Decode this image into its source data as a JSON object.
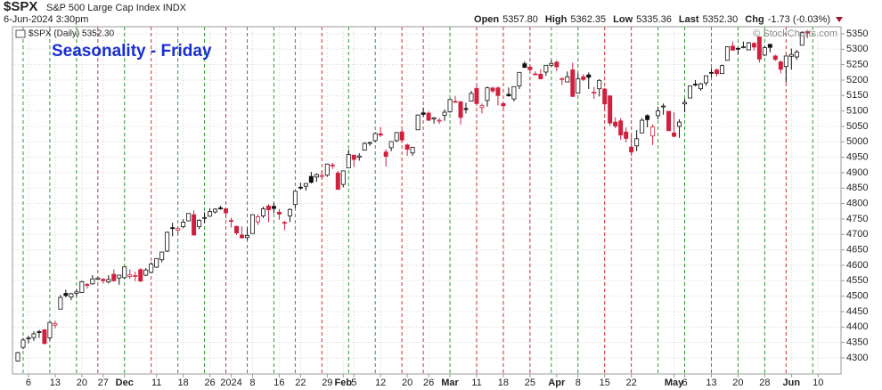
{
  "chart_data": {
    "type": "candlestick",
    "symbol": "$SPX",
    "name": "S&P 500 Large Cap Index",
    "exchange": "INDX",
    "date": "6-Jun-2024 3:30pm",
    "quote": [
      {
        "label": "Open",
        "value": "5357.80"
      },
      {
        "label": "High",
        "value": "5362.35"
      },
      {
        "label": "Low",
        "value": "5335.36"
      },
      {
        "label": "Last",
        "value": "5352.30"
      },
      {
        "label": "Chg",
        "value": "-1.73 (-0.03%)"
      }
    ],
    "legend": "$SPX (Daily) 5352.30",
    "title": "Seasonality - Friday",
    "watermark": "© StockCharts.com",
    "up_color": "#111111",
    "down_color": "#d0203f",
    "grid": true,
    "ylim": [
      4248,
      5373
    ],
    "yticks": [
      4300,
      4350,
      4400,
      4450,
      4500,
      4550,
      4600,
      4650,
      4700,
      4750,
      4800,
      4850,
      4900,
      4950,
      5000,
      5050,
      5100,
      5150,
      5200,
      5250,
      5300,
      5350
    ],
    "xlim": [
      -1,
      154.3
    ],
    "xticks": [
      {
        "value": 2,
        "label": "6"
      },
      {
        "value": 7,
        "label": "13"
      },
      {
        "value": 12,
        "label": "20"
      },
      {
        "value": 16,
        "label": "27"
      },
      {
        "value": 20,
        "label": "Dec"
      },
      {
        "value": 26,
        "label": "11"
      },
      {
        "value": 31,
        "label": "18"
      },
      {
        "value": 36,
        "label": "26"
      },
      {
        "value": 40,
        "label": "2024"
      },
      {
        "value": 44,
        "label": "8"
      },
      {
        "value": 49,
        "label": "16"
      },
      {
        "value": 53,
        "label": "22"
      },
      {
        "value": 58,
        "label": "29"
      },
      {
        "value": 61,
        "label": "Feb"
      },
      {
        "value": 63,
        "label": "5"
      },
      {
        "value": 68,
        "label": "12"
      },
      {
        "value": 73,
        "label": "20"
      },
      {
        "value": 77,
        "label": "26"
      },
      {
        "value": 81,
        "label": "Mar"
      },
      {
        "value": 86,
        "label": "11"
      },
      {
        "value": 91,
        "label": "18"
      },
      {
        "value": 96,
        "label": "25"
      },
      {
        "value": 101,
        "label": "Apr"
      },
      {
        "value": 105,
        "label": "8"
      },
      {
        "value": 110,
        "label": "15"
      },
      {
        "value": 115,
        "label": "22"
      },
      {
        "value": 123,
        "label": "May"
      },
      {
        "value": 125,
        "label": "6"
      },
      {
        "value": 130,
        "label": "13"
      },
      {
        "value": 135,
        "label": "20"
      },
      {
        "value": 140,
        "label": "28"
      },
      {
        "value": 145,
        "label": "Jun"
      },
      {
        "value": 150,
        "label": "10"
      }
    ],
    "fridays": [
      {
        "value": 1,
        "color": "#2e9a2e"
      },
      {
        "value": 6,
        "color": "#2e9a2e"
      },
      {
        "value": 11,
        "color": "#2e9a2e"
      },
      {
        "value": 15,
        "color": "#d03030"
      },
      {
        "value": 20,
        "color": "#2e9a2e"
      },
      {
        "value": 25,
        "color": "#d03030"
      },
      {
        "value": 30,
        "color": "#2e9a2e"
      },
      {
        "value": 35,
        "color": "#2e9a2e"
      },
      {
        "value": 39,
        "color": "#d03030"
      },
      {
        "value": 43,
        "color": "#2e9a2e"
      },
      {
        "value": 48,
        "color": "#2e9a2e"
      },
      {
        "value": 52,
        "color": "#2e9a2e"
      },
      {
        "value": 57,
        "color": "#d03030"
      },
      {
        "value": 62,
        "color": "#2e9a2e"
      },
      {
        "value": 67,
        "color": "#2e9a2e"
      },
      {
        "value": 72,
        "color": "#d03030"
      },
      {
        "value": 76,
        "color": "#d03030"
      },
      {
        "value": 81,
        "color": "#2e9a2e"
      },
      {
        "value": 86,
        "color": "#d03030"
      },
      {
        "value": 91,
        "color": "#d03030"
      },
      {
        "value": 96,
        "color": "#d03030"
      },
      {
        "value": 100,
        "color": "#2e9a2e"
      },
      {
        "value": 105,
        "color": "#2e9a2e"
      },
      {
        "value": 110,
        "color": "#d03030"
      },
      {
        "value": 115,
        "color": "#d03030"
      },
      {
        "value": 120,
        "color": "#2e9a2e"
      },
      {
        "value": 125,
        "color": "#2e9a2e"
      },
      {
        "value": 130,
        "color": "#2e9a2e"
      },
      {
        "value": 135,
        "color": "#2e9a2e"
      },
      {
        "value": 140,
        "color": "#2e9a2e"
      },
      {
        "value": 144,
        "color": "#d03030"
      },
      {
        "value": 149,
        "color": "#2e9a2e"
      }
    ],
    "candles": [
      [
        4290,
        4320,
        4288,
        4317
      ],
      [
        4334,
        4365,
        4328,
        4358
      ],
      [
        4364,
        4372,
        4347,
        4365
      ],
      [
        4366,
        4386,
        4355,
        4378
      ],
      [
        4385,
        4391,
        4365,
        4383
      ],
      [
        4391,
        4393,
        4343,
        4347
      ],
      [
        4365,
        4418,
        4357,
        4415
      ],
      [
        4406,
        4421,
        4396,
        4411
      ],
      [
        4458,
        4504,
        4458,
        4496
      ],
      [
        4509,
        4521,
        4496,
        4502
      ],
      [
        4497,
        4511,
        4487,
        4508
      ],
      [
        4509,
        4521,
        4500,
        4514
      ],
      [
        4512,
        4550,
        4511,
        4547
      ],
      [
        4538,
        4543,
        4525,
        4538
      ],
      [
        4540,
        4568,
        4537,
        4556
      ],
      [
        4555,
        4560,
        4552,
        4559
      ],
      [
        4555,
        4558,
        4541,
        4550
      ],
      [
        4546,
        4568,
        4541,
        4554
      ],
      [
        4571,
        4587,
        4547,
        4550
      ],
      [
        4559,
        4569,
        4537,
        4568
      ],
      [
        4560,
        4595,
        4557,
        4595
      ],
      [
        4564,
        4587,
        4556,
        4569
      ],
      [
        4566,
        4580,
        4549,
        4567
      ],
      [
        4586,
        4591,
        4546,
        4549
      ],
      [
        4568,
        4591,
        4565,
        4585
      ],
      [
        4577,
        4610,
        4574,
        4604
      ],
      [
        4594,
        4623,
        4592,
        4622
      ],
      [
        4618,
        4644,
        4610,
        4643
      ],
      [
        4646,
        4709,
        4643,
        4707
      ],
      [
        4722,
        4738,
        4694,
        4720
      ],
      [
        4714,
        4726,
        4702,
        4719
      ],
      [
        4725,
        4749,
        4720,
        4740
      ],
      [
        4744,
        4768,
        4743,
        4768
      ],
      [
        4764,
        4778,
        4697,
        4698
      ],
      [
        4725,
        4749,
        4717,
        4746
      ],
      [
        4753,
        4772,
        4737,
        4755
      ],
      [
        4759,
        4785,
        4758,
        4774
      ],
      [
        4773,
        4785,
        4768,
        4782
      ],
      [
        4786,
        4793,
        4780,
        4783
      ],
      [
        4783,
        4788,
        4752,
        4770
      ],
      [
        4745,
        4754,
        4723,
        4743
      ],
      [
        4726,
        4729,
        4699,
        4705
      ],
      [
        4698,
        4726,
        4687,
        4689
      ],
      [
        4690,
        4722,
        4682,
        4697
      ],
      [
        4703,
        4765,
        4703,
        4764
      ],
      [
        4741,
        4765,
        4731,
        4757
      ],
      [
        4760,
        4790,
        4753,
        4783
      ],
      [
        4792,
        4798,
        4740,
        4780
      ],
      [
        4791,
        4802,
        4769,
        4784
      ],
      [
        4772,
        4782,
        4748,
        4766
      ],
      [
        4739,
        4744,
        4714,
        4739
      ],
      [
        4760,
        4785,
        4740,
        4781
      ],
      [
        4797,
        4842,
        4785,
        4840
      ],
      [
        4853,
        4868,
        4845,
        4851
      ],
      [
        4856,
        4866,
        4842,
        4865
      ],
      [
        4888,
        4903,
        4865,
        4869
      ],
      [
        4886,
        4898,
        4870,
        4894
      ],
      [
        4888,
        4907,
        4881,
        4891
      ],
      [
        4892,
        4929,
        4887,
        4928
      ],
      [
        4925,
        4932,
        4912,
        4925
      ],
      [
        4899,
        4906,
        4845,
        4846
      ],
      [
        4862,
        4907,
        4853,
        4906
      ],
      [
        4916,
        4975,
        4916,
        4959
      ],
      [
        4957,
        4957,
        4918,
        4943
      ],
      [
        4950,
        4963,
        4939,
        4954
      ],
      [
        4973,
        4999,
        4973,
        4995
      ],
      [
        4995,
        5000,
        4987,
        4998
      ],
      [
        5004,
        5031,
        4999,
        5027
      ],
      [
        5026,
        5048,
        5016,
        5022
      ],
      [
        4967,
        4976,
        4920,
        4953
      ],
      [
        4981,
        5002,
        4970,
        5001
      ],
      [
        5004,
        5032,
        4999,
        5030
      ],
      [
        5032,
        5039,
        4996,
        5006
      ],
      [
        4990,
        4994,
        4955,
        4976
      ],
      [
        4964,
        4984,
        4955,
        4982
      ],
      [
        5039,
        5089,
        5039,
        5087
      ],
      [
        5094,
        5111,
        5081,
        5089
      ],
      [
        5093,
        5098,
        5068,
        5070
      ],
      [
        5074,
        5080,
        5059,
        5078
      ],
      [
        5068,
        5077,
        5058,
        5070
      ],
      [
        5086,
        5105,
        5068,
        5096
      ],
      [
        5098,
        5140,
        5094,
        5137
      ],
      [
        5131,
        5149,
        5127,
        5131
      ],
      [
        5130,
        5130,
        5056,
        5079
      ],
      [
        5108,
        5127,
        5092,
        5105
      ],
      [
        5132,
        5165,
        5132,
        5157
      ],
      [
        5173,
        5190,
        5117,
        5124
      ],
      [
        5111,
        5124,
        5092,
        5117
      ],
      [
        5134,
        5179,
        5114,
        5175
      ],
      [
        5174,
        5180,
        5158,
        5165
      ],
      [
        5175,
        5179,
        5118,
        5150
      ],
      [
        5124,
        5128,
        5104,
        5117
      ],
      [
        5154,
        5176,
        5147,
        5149
      ],
      [
        5139,
        5180,
        5131,
        5179
      ],
      [
        5181,
        5226,
        5171,
        5225
      ],
      [
        5253,
        5261,
        5240,
        5241
      ],
      [
        5242,
        5246,
        5229,
        5234
      ],
      [
        5220,
        5229,
        5216,
        5218
      ],
      [
        5219,
        5235,
        5203,
        5204
      ],
      [
        5226,
        5249,
        5214,
        5248
      ],
      [
        5248,
        5265,
        5245,
        5254
      ],
      [
        5258,
        5264,
        5229,
        5243
      ],
      [
        5204,
        5209,
        5184,
        5205
      ],
      [
        5194,
        5228,
        5194,
        5211
      ],
      [
        5233,
        5256,
        5146,
        5147
      ],
      [
        5158,
        5222,
        5157,
        5204
      ],
      [
        5211,
        5219,
        5197,
        5202
      ],
      [
        5217,
        5225,
        5171,
        5209
      ],
      [
        5160,
        5178,
        5139,
        5161
      ],
      [
        5172,
        5203,
        5147,
        5199
      ],
      [
        5171,
        5175,
        5107,
        5123
      ],
      [
        5149,
        5150,
        5052,
        5061
      ],
      [
        5064,
        5079,
        5044,
        5051
      ],
      [
        5068,
        5077,
        5007,
        5022
      ],
      [
        5032,
        5046,
        4998,
        5011
      ],
      [
        4983,
        5020,
        4954,
        4967
      ],
      [
        4987,
        5038,
        4970,
        5010
      ],
      [
        5029,
        5077,
        5028,
        5070
      ],
      [
        5085,
        5089,
        5047,
        5072
      ],
      [
        5019,
        5057,
        4990,
        5048
      ],
      [
        5085,
        5114,
        5073,
        5100
      ],
      [
        5115,
        5124,
        5088,
        5116
      ],
      [
        5099,
        5099,
        5036,
        5036
      ],
      [
        5029,
        5096,
        5014,
        5018
      ],
      [
        5050,
        5073,
        5013,
        5064
      ],
      [
        5123,
        5140,
        5096,
        5128
      ],
      [
        5142,
        5181,
        5142,
        5181
      ],
      [
        5187,
        5200,
        5180,
        5187
      ],
      [
        5172,
        5191,
        5166,
        5188
      ],
      [
        5191,
        5214,
        5182,
        5214
      ],
      [
        5225,
        5239,
        5209,
        5223
      ],
      [
        5233,
        5238,
        5212,
        5221
      ],
      [
        5221,
        5250,
        5221,
        5247
      ],
      [
        5264,
        5309,
        5263,
        5308
      ],
      [
        5310,
        5325,
        5296,
        5297
      ],
      [
        5303,
        5305,
        5284,
        5303
      ],
      [
        5305,
        5325,
        5303,
        5308
      ],
      [
        5298,
        5324,
        5297,
        5321
      ],
      [
        5319,
        5323,
        5296,
        5307
      ],
      [
        5340,
        5342,
        5257,
        5268
      ],
      [
        5281,
        5310,
        5278,
        5305
      ],
      [
        5316,
        5316,
        5290,
        5306
      ],
      [
        5278,
        5282,
        5262,
        5267
      ],
      [
        5259,
        5264,
        5222,
        5235
      ],
      [
        5244,
        5280,
        5192,
        5278
      ],
      [
        5277,
        5302,
        5234,
        5283
      ],
      [
        5275,
        5298,
        5266,
        5291
      ],
      [
        5313,
        5354,
        5312,
        5354
      ],
      [
        5357.8,
        5362.35,
        5335.36,
        5352.3
      ]
    ]
  }
}
